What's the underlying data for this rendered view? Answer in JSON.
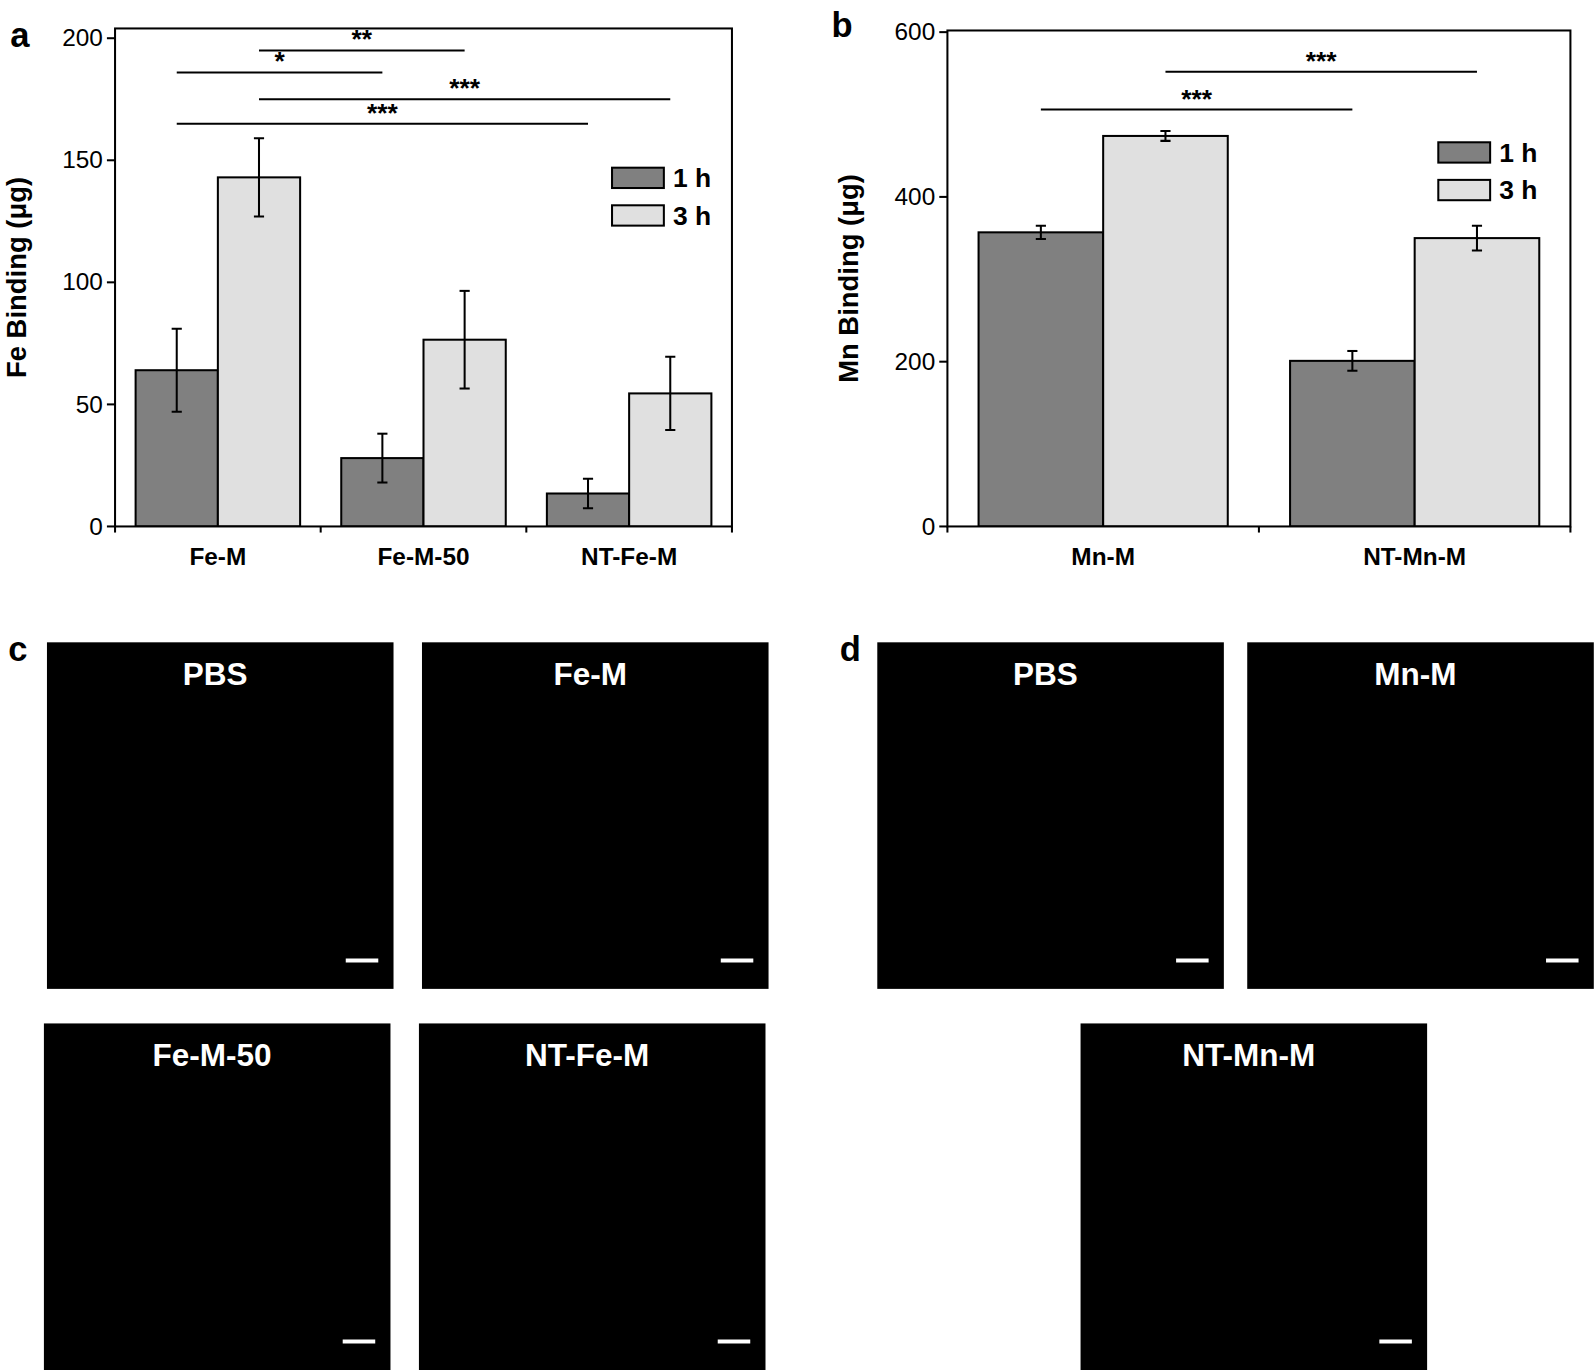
{
  "chart_data": [
    {
      "type": "bar",
      "y_label": "Fe Binding (μg)",
      "categories": [
        "Fe-M",
        "Fe-M-50",
        "NT-Fe-M"
      ],
      "series": [
        {
          "name": "1 h",
          "color": "#808080",
          "values": [
            64,
            28,
            13.5
          ],
          "errors": [
            17,
            10,
            6
          ]
        },
        {
          "name": "3 h",
          "color": "#e0e0e0",
          "values": [
            143,
            76.5,
            54.5
          ],
          "errors": [
            16,
            20,
            15
          ]
        }
      ],
      "ylim": [
        0,
        204
      ],
      "yticks": [
        0,
        50,
        100,
        150,
        200
      ],
      "legend": "upper right",
      "annotations": [
        {
          "from": [
            0,
            1
          ],
          "to": [
            1,
            1
          ],
          "label": "**",
          "y": 195
        },
        {
          "from": [
            0,
            0
          ],
          "to": [
            1,
            0
          ],
          "label": "*",
          "y": 186
        },
        {
          "from": [
            0,
            1
          ],
          "to": [
            2,
            1
          ],
          "label": "***",
          "y": 175
        },
        {
          "from": [
            0,
            0
          ],
          "to": [
            2,
            0
          ],
          "label": "***",
          "y": 165
        }
      ]
    },
    {
      "type": "bar",
      "y_label": "Mn Binding (μg)",
      "categories": [
        "Mn-M",
        "NT-Mn-M"
      ],
      "series": [
        {
          "name": "1 h",
          "color": "#808080",
          "values": [
            357,
            201
          ],
          "errors": [
            8,
            12
          ]
        },
        {
          "name": "3 h",
          "color": "#e0e0e0",
          "values": [
            474,
            350
          ],
          "errors": [
            6,
            15
          ]
        }
      ],
      "ylim": [
        0,
        602
      ],
      "yticks": [
        0,
        200,
        400,
        600
      ],
      "legend": "upper right",
      "annotations": [
        {
          "from": [
            0,
            1
          ],
          "to": [
            1,
            1
          ],
          "label": "***",
          "y": 552
        },
        {
          "from": [
            0,
            0
          ],
          "to": [
            1,
            0
          ],
          "label": "***",
          "y": 506
        }
      ]
    }
  ],
  "panel_labels": [
    "a",
    "b",
    "c",
    "d"
  ],
  "images": [
    {
      "tiles": [
        {
          "label": "PBS"
        },
        {
          "label": "Fe-M"
        },
        {
          "label": "Fe-M-50"
        },
        {
          "label": "NT-Fe-M"
        }
      ]
    },
    {
      "tiles": [
        {
          "label": "PBS"
        },
        {
          "label": "Mn-M"
        },
        {
          "label": "NT-Mn-M"
        }
      ]
    }
  ]
}
